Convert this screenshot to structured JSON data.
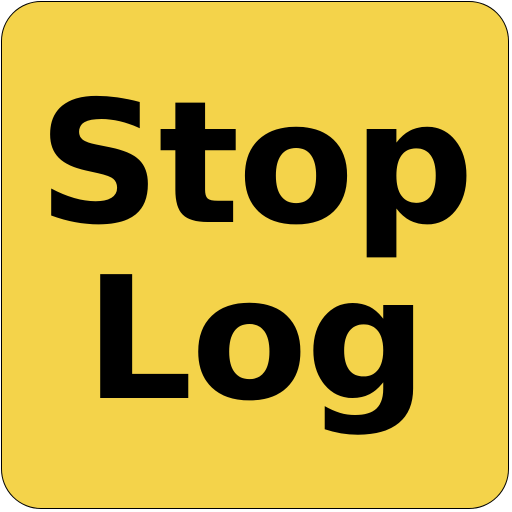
{
  "button": {
    "line1": "Stop",
    "line2": "Log"
  },
  "colors": {
    "background": "#F4D34A",
    "text": "#000000",
    "border": "#000000"
  }
}
